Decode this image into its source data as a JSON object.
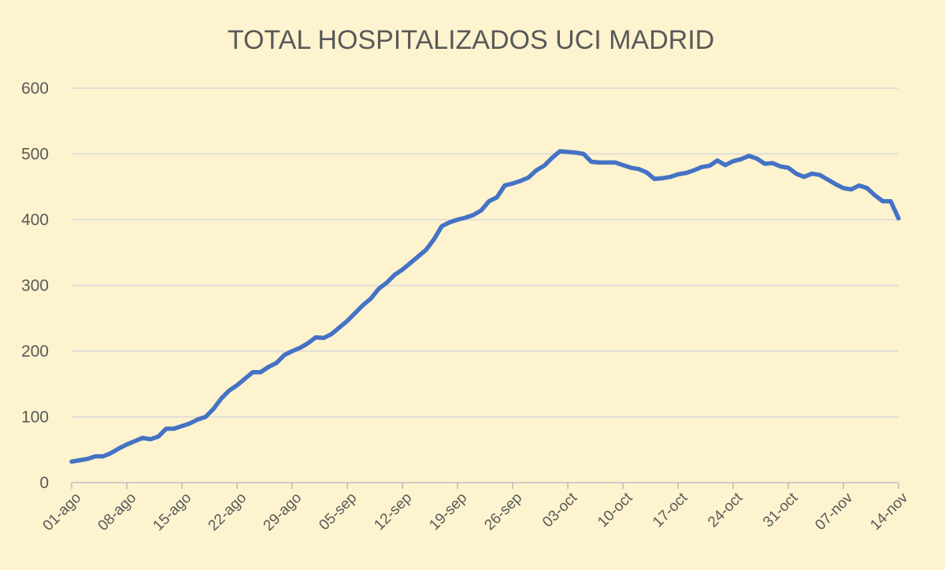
{
  "chart_data": {
    "type": "line",
    "title": "TOTAL HOSPITALIZADOS UCI MADRID",
    "xlabel": "",
    "ylabel": "",
    "ylim": [
      0,
      600
    ],
    "yticks": [
      0,
      100,
      200,
      300,
      400,
      500,
      600
    ],
    "grid": true,
    "legend": "none",
    "x_tick_labels": [
      "01-ago",
      "08-ago",
      "15-ago",
      "22-ago",
      "29-ago",
      "05-sep",
      "12-sep",
      "19-sep",
      "26-sep",
      "03-oct",
      "10-oct",
      "17-oct",
      "24-oct",
      "31-oct",
      "07-nov",
      "14-nov"
    ],
    "series": [
      {
        "name": "UCI Madrid",
        "color": "#4472c4",
        "values": [
          32,
          34,
          36,
          40,
          40,
          45,
          52,
          58,
          63,
          68,
          66,
          70,
          82,
          82,
          86,
          90,
          96,
          100,
          112,
          128,
          140,
          148,
          158,
          168,
          168,
          176,
          182,
          194,
          200,
          205,
          212,
          221,
          220,
          226,
          236,
          246,
          258,
          270,
          280,
          295,
          304,
          316,
          324,
          334,
          344,
          354,
          370,
          390,
          396,
          400,
          403,
          407,
          414,
          428,
          434,
          452,
          455,
          459,
          464,
          475,
          482,
          494,
          504,
          503,
          502,
          500,
          488,
          487,
          487,
          487,
          483,
          479,
          477,
          472,
          462,
          463,
          465,
          469,
          471,
          475,
          480,
          482,
          490,
          483,
          489,
          492,
          497,
          493,
          485,
          486,
          481,
          479,
          470,
          465,
          470,
          468,
          461,
          454,
          448,
          446,
          452,
          448,
          437,
          428,
          428,
          402
        ]
      }
    ]
  }
}
